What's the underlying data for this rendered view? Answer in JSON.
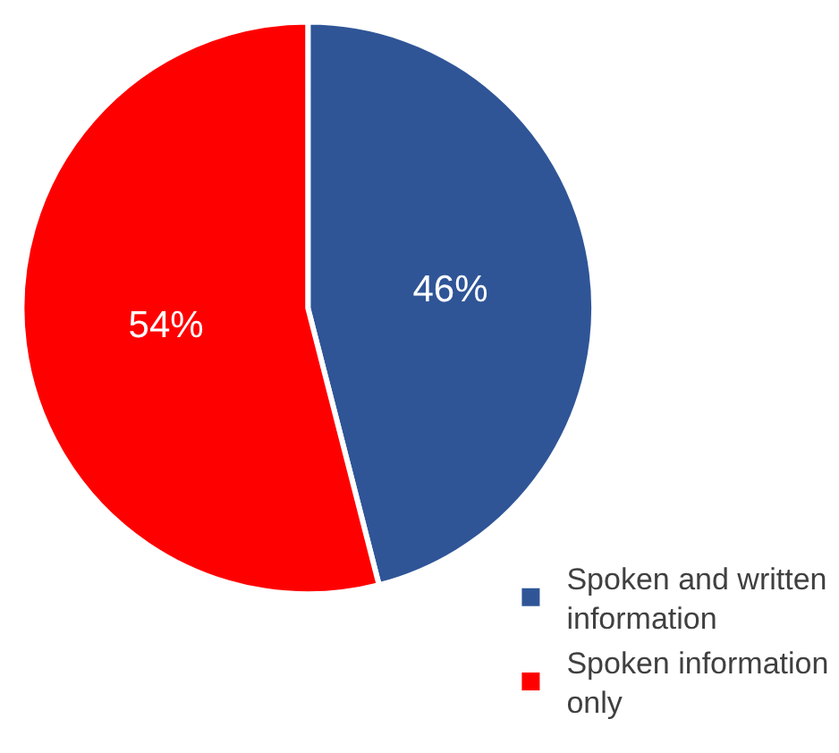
{
  "chart_data": {
    "type": "pie",
    "categories": [
      "Spoken and written information",
      "Spoken information only"
    ],
    "values": [
      46,
      54
    ],
    "colors": [
      "#2f5597",
      "#ff0000"
    ],
    "value_labels": [
      "46%",
      "54%"
    ],
    "legend": "bottom right"
  }
}
